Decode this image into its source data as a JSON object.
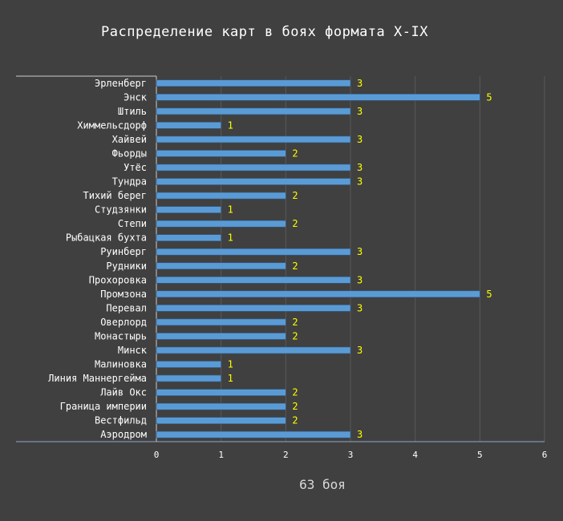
{
  "chart_data": {
    "type": "bar",
    "orientation": "horizontal",
    "title": "Распределение карт в боях формата X-IX",
    "xlabel": "63 боя",
    "ylabel": "",
    "xlim": [
      0,
      6
    ],
    "xticks": [
      0,
      1,
      2,
      3,
      4,
      5,
      6
    ],
    "grid": "vertical",
    "data_labels": true,
    "categories": [
      "Эрленберг",
      "Энск",
      "Штиль",
      "Химмельсдорф",
      "Хайвей",
      "Фьорды",
      "Утёс",
      "Тундра",
      "Тихий берег",
      "Студзянки",
      "Степи",
      "Рыбацкая бухта",
      "Руинберг",
      "Рудники",
      "Прохоровка",
      "Промзона",
      "Перевал",
      "Оверлорд",
      "Монастырь",
      "Минск",
      "Малиновка",
      "Линия Маннергейма",
      "Лайв Окс",
      "Граница империи",
      "Вестфильд",
      "Аэродром"
    ],
    "values": [
      3,
      5,
      3,
      1,
      3,
      2,
      3,
      3,
      2,
      1,
      2,
      1,
      3,
      2,
      3,
      5,
      3,
      2,
      2,
      3,
      1,
      1,
      2,
      2,
      2,
      3
    ]
  },
  "colors": {
    "background": "#404040",
    "bar": "#5b9bd5",
    "bar_edge": "#2e5f8e",
    "data_label": "#ffff00",
    "text": "#ffffff",
    "gridline": "#595959",
    "axis": "#8ea9c8"
  }
}
